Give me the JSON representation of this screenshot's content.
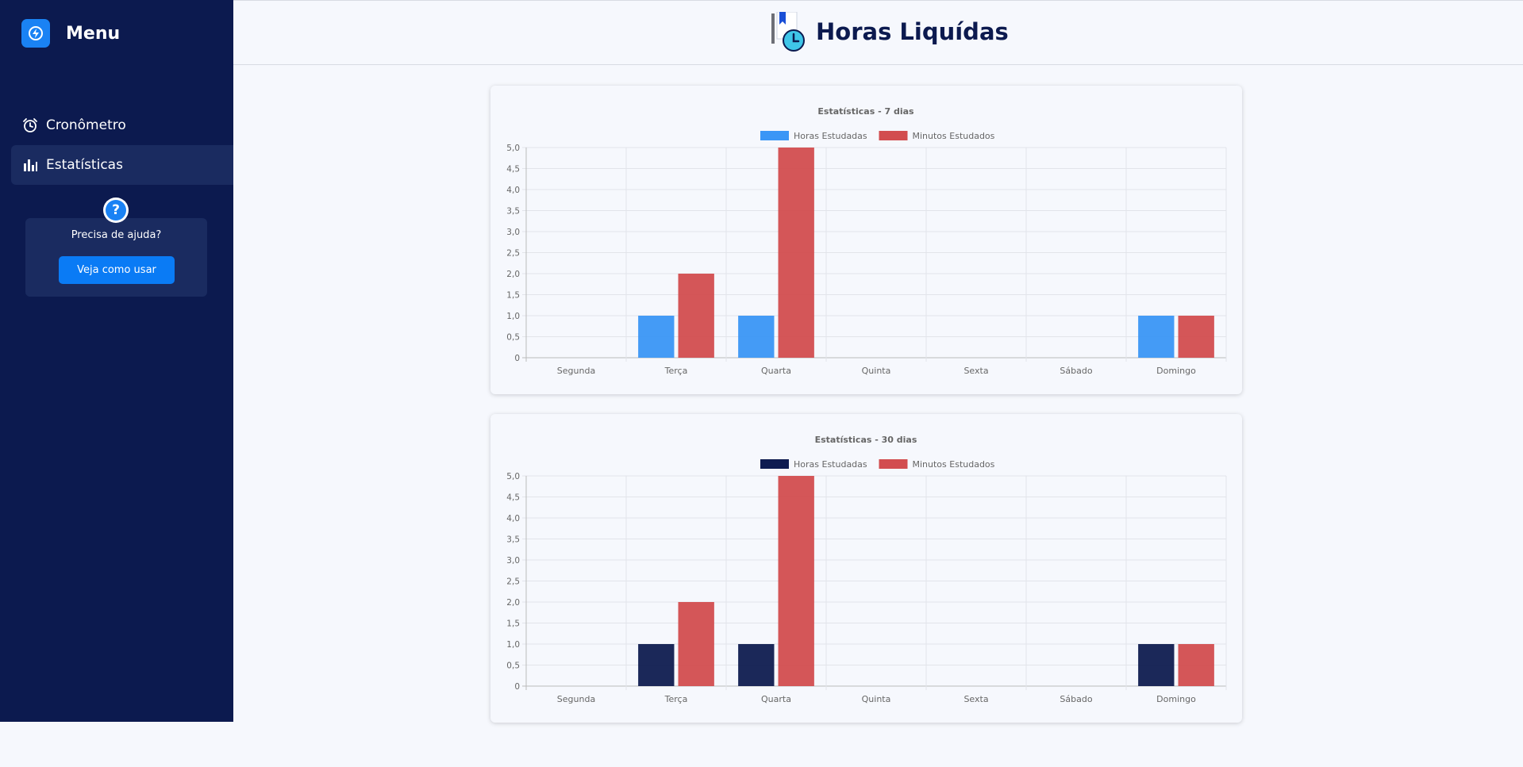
{
  "sidebar": {
    "title": "Menu",
    "items": [
      {
        "label": "Cronômetro",
        "icon": "alarm-clock-icon"
      },
      {
        "label": "Estatísticas",
        "icon": "bar-chart-icon",
        "active": true
      }
    ],
    "help": {
      "icon": "question-icon",
      "text": "Precisa de ajuda?",
      "button": "Veja como usar"
    }
  },
  "header": {
    "title": "Horas Liquídas",
    "logo": "bookmark-clock-logo"
  },
  "colors": {
    "sidebar_bg": "#0c1a4f",
    "accent": "#1a82f4",
    "hours_7": "#3a96f6",
    "hours_30": "#0f1c50",
    "minutes": "#d24d4f"
  },
  "chart_data": [
    {
      "type": "bar",
      "title": "Estatísticas - 7 dias",
      "categories": [
        "Segunda",
        "Terça",
        "Quarta",
        "Quinta",
        "Sexta",
        "Sábado",
        "Domingo"
      ],
      "series": [
        {
          "name": "Horas Estudadas",
          "values": [
            0,
            1,
            1,
            0,
            0,
            0,
            1
          ],
          "color": "#3a96f6"
        },
        {
          "name": "Minutos Estudados",
          "values": [
            0,
            2,
            5,
            0,
            0,
            0,
            1
          ],
          "color": "#d24d4f"
        }
      ],
      "ylim": [
        0,
        5
      ],
      "yticks": [
        "0",
        "0,5",
        "1,0",
        "1,5",
        "2,0",
        "2,5",
        "3,0",
        "3,5",
        "4,0",
        "4,5",
        "5,0"
      ],
      "legend": "top",
      "grid": true
    },
    {
      "type": "bar",
      "title": "Estatísticas - 30 dias",
      "categories": [
        "Segunda",
        "Terça",
        "Quarta",
        "Quinta",
        "Sexta",
        "Sábado",
        "Domingo"
      ],
      "series": [
        {
          "name": "Horas Estudadas",
          "values": [
            0,
            1,
            1,
            0,
            0,
            0,
            1
          ],
          "color": "#0f1c50"
        },
        {
          "name": "Minutos Estudados",
          "values": [
            0,
            2,
            5,
            0,
            0,
            0,
            1
          ],
          "color": "#d24d4f"
        }
      ],
      "ylim": [
        0,
        5
      ],
      "yticks": [
        "0",
        "0,5",
        "1,0",
        "1,5",
        "2,0",
        "2,5",
        "3,0",
        "3,5",
        "4,0",
        "4,5",
        "5,0"
      ],
      "legend": "top",
      "grid": true
    }
  ]
}
